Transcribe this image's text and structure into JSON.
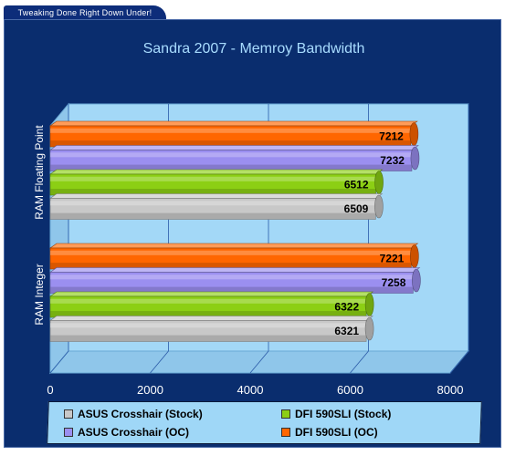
{
  "banner": {
    "text": "Tweaking Done Right Down Under!"
  },
  "chart_data": {
    "type": "bar",
    "orientation": "horizontal",
    "three_d": true,
    "title": "Sandra 2007 - Memroy Bandwidth",
    "categories": [
      "RAM Floating Point",
      "RAM Integer"
    ],
    "series": [
      {
        "name": "DFI 590SLI (OC)",
        "color": "#ff6600",
        "values": [
          7212,
          7221
        ]
      },
      {
        "name": "ASUS Crosshair (OC)",
        "color": "#9b8ff0",
        "values": [
          7232,
          7258
        ]
      },
      {
        "name": "DFI 590SLI (Stock)",
        "color": "#8ccf14",
        "values": [
          6512,
          6322
        ]
      },
      {
        "name": "ASUS Crosshair (Stock)",
        "color": "#c8c8c8",
        "values": [
          6509,
          6321
        ]
      }
    ],
    "xlim": [
      0,
      8000
    ],
    "xticks": [
      "0",
      "2000",
      "4000",
      "6000",
      "8000"
    ],
    "grid": true,
    "legend_position": "bottom"
  },
  "legend": [
    {
      "label": "ASUS Crosshair (Stock)",
      "color": "#c8c8c8"
    },
    {
      "label": "DFI 590SLI (Stock)",
      "color": "#8ccf14"
    },
    {
      "label": "ASUS Crosshair (OC)",
      "color": "#9b8ff0"
    },
    {
      "label": "DFI 590SLI (OC)",
      "color": "#ff6600"
    }
  ]
}
